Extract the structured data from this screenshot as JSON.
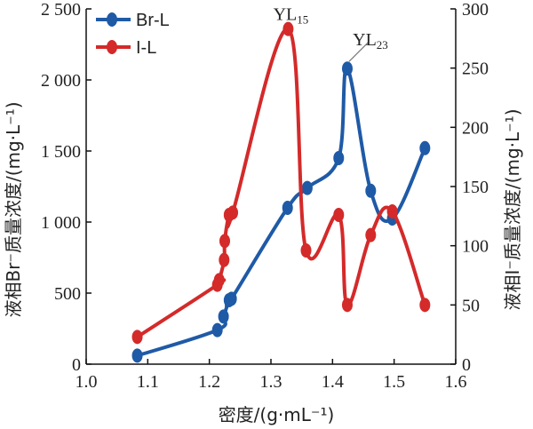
{
  "chart_data": {
    "type": "line",
    "xlabel": "密度/(g·mL⁻¹)",
    "ylabel_left": "液相Br⁻质量浓度/(mg·L⁻¹)",
    "ylabel_right": "液相I⁻质量浓度/(mg·L⁻¹)",
    "xlim": [
      1.0,
      1.6
    ],
    "ylim_left": [
      0,
      2500
    ],
    "ylim_right": [
      0,
      300
    ],
    "x_ticks": [
      "1.0",
      "1.1",
      "1.2",
      "1.3",
      "1.4",
      "1.5",
      "1.6"
    ],
    "y_left_ticks": [
      "0",
      "500",
      "1 000",
      "1 500",
      "2 000",
      "2 500"
    ],
    "y_right_ticks": [
      "0",
      "50",
      "100",
      "150",
      "200",
      "250",
      "300"
    ],
    "legend_position": "top-left",
    "series": [
      {
        "name": "Br-L",
        "axis": "left",
        "color": "#1f5aa6",
        "x": [
          1.083,
          1.213,
          1.223,
          1.232,
          1.236,
          1.327,
          1.359,
          1.41,
          1.424,
          1.462,
          1.497,
          1.55
        ],
        "y": [
          60,
          240,
          335,
          450,
          460,
          1100,
          1240,
          1450,
          2080,
          1220,
          1025,
          1520
        ]
      },
      {
        "name": "I-L",
        "axis": "right",
        "color": "#d42a2a",
        "x": [
          1.083,
          1.213,
          1.216,
          1.224,
          1.225,
          1.232,
          1.238,
          1.328,
          1.357,
          1.41,
          1.424,
          1.462,
          1.497,
          1.55
        ],
        "y": [
          23,
          67,
          71,
          88,
          104,
          126,
          128,
          283,
          96,
          126,
          50,
          109,
          129,
          50
        ]
      }
    ],
    "annotations": [
      {
        "text": "YL",
        "subscript": "15",
        "x": 1.328,
        "y": 283,
        "axis": "right"
      },
      {
        "text": "YL",
        "subscript": "23",
        "x": 1.424,
        "y": 2080,
        "axis": "left"
      }
    ]
  }
}
